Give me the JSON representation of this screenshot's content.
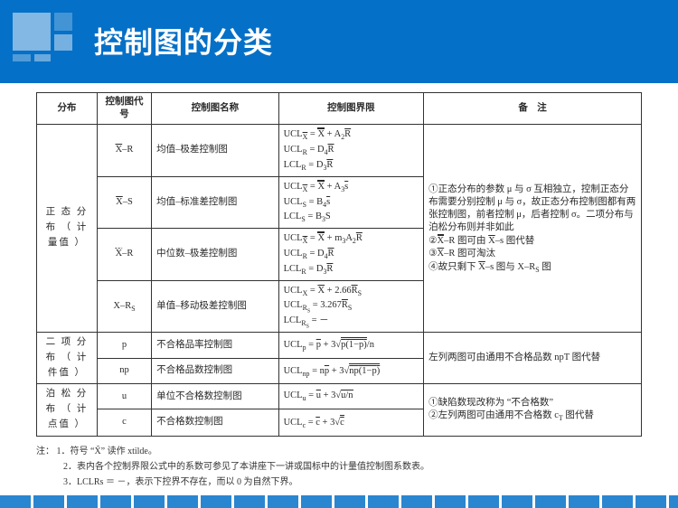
{
  "title": "控制图的分类",
  "colors": {
    "brand": "#0570c7",
    "text": "#2a2a2a",
    "border": "#333333",
    "bg": "#ffffff"
  },
  "table": {
    "headers": [
      "分布",
      "控制图代号",
      "控制图名称",
      "控制图界限",
      "备　注"
    ],
    "groups": [
      {
        "distribution": "正 态 分 布 （ 计 量值 ）",
        "remark_html": "①正态分布的参数 μ 与 σ 互相独立，控制正态分布需要分别控制 μ 与 σ，故正态分布控制图都有两张控制图，前者控制 μ，后者控制 σ。二项分布与泊松分布则并非如此<br>②<span class=\"dol\">X</span>–R 图可由 <span class=\"ol\">X</span>–s 图代替<br>③<span class=\"ol\">X</span>–R 图可淘汰<br>④故只剩下 <span class=\"ol\">X</span>–s 图与 X–R<sub>S</sub> 图",
        "rows": [
          {
            "code_html": "<span class=\"ol\">X</span>–R",
            "name": "均值–极差控制图",
            "limits_html": "UCL<sub><span class=\"ol\">X</span></sub> = <span class=\"dol\">X</span> + A<sub>2</sub><span class=\"ol\">R</span><br>UCL<sub>R</sub> = D<sub>4</sub><span class=\"ol\">R</span><br>LCL<sub>R</sub> = D<sub>3</sub><span class=\"ol\">R</span>"
          },
          {
            "code_html": "<span class=\"ol\">X</span>–S",
            "name": "均值–标准差控制图",
            "limits_html": "UCL<sub><span class=\"ol\">X</span></sub> = <span class=\"dol\">X</span> + A<sub>3</sub><span class=\"ol\">s</span><br>UCL<sub>S</sub> = B<sub>4</sub><span class=\"ol\">s</span><br>LCL<sub>S</sub> = B<sub>3</sub>S"
          },
          {
            "code_html": "<span class=\"ol\">X̃</span>–R",
            "name": "中位数–极差控制图",
            "limits_html": "UCL<sub><span class=\"ol\">X̃</span></sub> = <span class=\"dol\">X̃</span> + m<sub>3</sub>A<sub>2</sub><span class=\"ol\">R</span><br>UCL<sub>R</sub> = D<sub>4</sub><span class=\"ol\">R</span><br>LCL<sub>R</sub> = D<sub>3</sub><span class=\"ol\">R</span>"
          },
          {
            "code_html": "X–R<sub>S</sub>",
            "name": "单值–移动极差控制图",
            "limits_html": "UCL<sub>X</sub> = <span class=\"ol\">X</span> + 2.66<span class=\"ol\">R</span><sub>S</sub><br>UCL<sub>R<sub>S</sub></sub> = 3.267<span class=\"ol\">R</span><sub>S</sub><br>LCL<sub>R<sub>S</sub></sub> = －"
          }
        ]
      },
      {
        "distribution": "二 项 分 布 （ 计 件值 ）",
        "remark_html": "左列两图可由通用不合格品数 npT 图代替",
        "rows": [
          {
            "code_html": "p",
            "name": "不合格品率控制图",
            "limits_html": "UCL<sub>p</sub> = <span class=\"ol\">p</span> + 3√<span class=\"ol\" style=\"border-top:1px solid #2a2a2a;\"><span class=\"ol\">p</span>(1−<span class=\"ol\">p</span>)</span>/n"
          },
          {
            "code_html": "np",
            "name": "不合格品数控制图",
            "limits_html": "UCL<sub>np</sub> = n<span class=\"ol\">p</span> + 3√<span class=\"ol\" style=\"border-top:1px solid #2a2a2a;\">n<span class=\"ol\">p</span>(1−<span class=\"ol\">p</span>)</span>"
          }
        ]
      },
      {
        "distribution": "泊 松 分 布 （ 计 点值 ）",
        "remark_html": "①缺陷数现改称为 “不合格数”<br>②左列两图可由通用不合格数 c<sub>T</sub> 图代替",
        "rows": [
          {
            "code_html": "u",
            "name": "单位不合格数控制图",
            "limits_html": "UCL<sub>u</sub> = <span class=\"ol\">u</span> + 3√<span style=\"border-top:1px solid #2a2a2a;\"><span class=\"ol\">u</span>/n</span>"
          },
          {
            "code_html": "c",
            "name": "不合格数控制图",
            "limits_html": "UCL<sub>c</sub> = <span class=\"ol\">c</span> + 3√<span class=\"ol\" style=\"border-top:1px solid #2a2a2a;\">c</span>"
          }
        ]
      }
    ]
  },
  "notes_label": "注：",
  "notes": [
    "1．符号 “X̃” 读作 xtilde。",
    "2．表内各个控制界限公式中的系数可参见了本讲座下一讲或国标中的计量值控制图系数表。",
    "3．LCLRs ＝ －，表示下控界不存在，而以 0 为自然下界。"
  ]
}
